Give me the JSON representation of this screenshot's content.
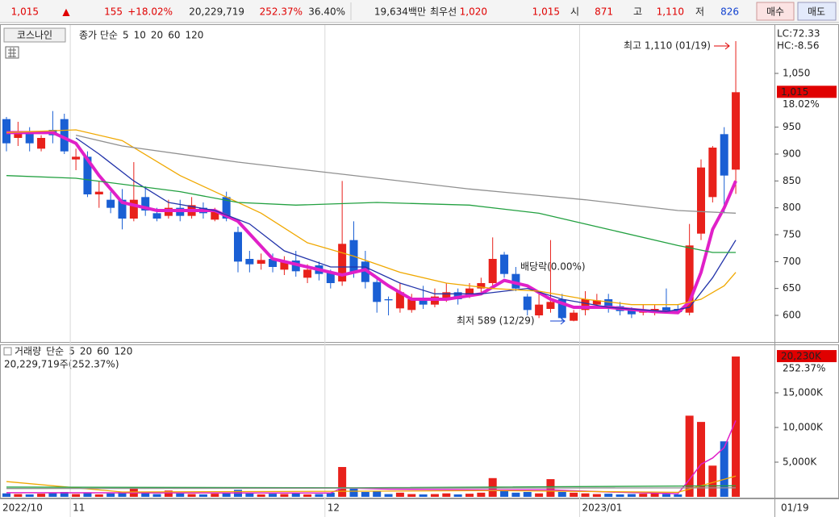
{
  "header": {
    "price": "1,015",
    "arrow": "▲",
    "change": "155",
    "change_pct": "+18.02%",
    "volume": "20,229,719",
    "volume_ratio": "252.37%",
    "turnover": "36.40%",
    "amount": "19,634백만",
    "best_label": "최우선",
    "best_ask": "1,020",
    "best_bid": "1,015",
    "open_label": "시",
    "open": "871",
    "high_label": "고",
    "high": "1,110",
    "low_label": "저",
    "low": "826",
    "buy": "매수",
    "sell": "매도"
  },
  "chart_data": [
    {
      "type": "candlestick",
      "stock": "코스나인",
      "ma_label": "종가 단순",
      "lc": "LC:72.33",
      "hc": "HC:-8.56",
      "categories": [
        "2022/10",
        null,
        null,
        null,
        null,
        null,
        "11",
        null,
        null,
        null,
        null,
        null,
        null,
        null,
        null,
        null,
        null,
        null,
        null,
        null,
        null,
        null,
        null,
        null,
        null,
        null,
        null,
        null,
        "12",
        null,
        null,
        null,
        null,
        null,
        null,
        null,
        null,
        null,
        null,
        null,
        null,
        null,
        null,
        null,
        null,
        null,
        null,
        null,
        null,
        null,
        "2023/01",
        null,
        null,
        null,
        null,
        null,
        null,
        null,
        null,
        null,
        null,
        null,
        null,
        "01/19"
      ],
      "open": [
        965,
        930,
        940,
        910,
        945,
        965,
        890,
        895,
        825,
        815,
        815,
        780,
        820,
        790,
        785,
        800,
        785,
        800,
        778,
        820,
        755,
        705,
        696,
        705,
        685,
        702,
        670,
        693,
        680,
        663,
        740,
        700,
        662,
        630,
        613,
        610,
        632,
        620,
        630,
        643,
        638,
        650,
        660,
        713,
        677,
        635,
        600,
        612,
        630,
        590,
        610,
        620,
        630,
        617,
        610,
        605,
        607,
        615,
        612,
        605,
        752,
        820,
        937,
        871
      ],
      "high": [
        969,
        960,
        950,
        935,
        980,
        975,
        910,
        905,
        850,
        830,
        835,
        885,
        840,
        800,
        815,
        815,
        820,
        810,
        800,
        830,
        765,
        720,
        715,
        715,
        710,
        720,
        695,
        700,
        685,
        850,
        775,
        720,
        670,
        635,
        660,
        640,
        655,
        650,
        660,
        650,
        660,
        670,
        745,
        718,
        690,
        640,
        640,
        740,
        640,
        610,
        645,
        640,
        640,
        625,
        615,
        620,
        620,
        650,
        620,
        770,
        890,
        915,
        950,
        1110
      ],
      "low": [
        905,
        915,
        905,
        905,
        920,
        900,
        870,
        820,
        800,
        790,
        760,
        775,
        785,
        775,
        780,
        775,
        780,
        780,
        775,
        775,
        680,
        680,
        685,
        680,
        675,
        672,
        660,
        665,
        650,
        655,
        670,
        650,
        605,
        600,
        605,
        605,
        612,
        615,
        625,
        620,
        632,
        640,
        650,
        670,
        645,
        600,
        595,
        605,
        590,
        589,
        600,
        612,
        605,
        600,
        595,
        600,
        600,
        605,
        603,
        600,
        740,
        810,
        790,
        826
      ],
      "close": [
        920,
        940,
        920,
        930,
        935,
        905,
        895,
        825,
        830,
        800,
        780,
        815,
        795,
        780,
        800,
        785,
        805,
        790,
        793,
        780,
        700,
        695,
        703,
        690,
        700,
        682,
        685,
        677,
        660,
        733,
        680,
        662,
        625,
        628,
        643,
        630,
        620,
        635,
        643,
        630,
        650,
        660,
        705,
        677,
        650,
        610,
        620,
        625,
        595,
        605,
        630,
        628,
        612,
        608,
        602,
        610,
        612,
        608,
        606,
        730,
        875,
        912,
        860,
        1015
      ],
      "up_color": "#e8211b",
      "down_color": "#1a5fd4",
      "ylim": [
        553.5,
        1137
      ],
      "yticks": [
        600,
        650,
        700,
        750,
        800,
        850,
        900,
        950,
        {
          "value": 1050,
          "label": "1,050"
        }
      ],
      "last": {
        "value": 1015,
        "label": "1,015",
        "change": "18.02%"
      },
      "annotations": {
        "high": "최고 1,110 (01/19)",
        "low": "최저 589 (12/29)",
        "dividend": "배당락(0.00%)"
      },
      "ma": [
        {
          "name": "5",
          "color": "#e020c8",
          "x": [
            0,
            4,
            6,
            8,
            10,
            13,
            18,
            20,
            23,
            27,
            29,
            31,
            33,
            35,
            38,
            41,
            43,
            45,
            47,
            49,
            52,
            56,
            58,
            59,
            60,
            61,
            62,
            63
          ],
          "values": [
            940,
            940,
            920,
            860,
            810,
            795,
            795,
            775,
            705,
            685,
            675,
            685,
            655,
            630,
            630,
            640,
            665,
            655,
            630,
            615,
            615,
            607,
            605,
            625,
            680,
            760,
            800,
            850
          ]
        },
        {
          "name": "10",
          "color": "#2233aa",
          "x": [
            6,
            8,
            11,
            14,
            18,
            21,
            24,
            28,
            31,
            34,
            37,
            41,
            45,
            48,
            52,
            57,
            59,
            61,
            63
          ],
          "values": [
            930,
            900,
            850,
            810,
            795,
            770,
            720,
            690,
            690,
            660,
            640,
            640,
            650,
            630,
            615,
            607,
            615,
            670,
            740
          ]
        },
        {
          "name": "20",
          "color": "#f0a800",
          "x": [
            0,
            6,
            10,
            15,
            19,
            22,
            26,
            30,
            34,
            38,
            42,
            46,
            50,
            54,
            58,
            60,
            62,
            63
          ],
          "values": [
            940,
            945,
            925,
            860,
            820,
            790,
            735,
            710,
            680,
            660,
            650,
            645,
            630,
            620,
            620,
            630,
            655,
            680
          ]
        },
        {
          "name": "60",
          "color": "#22a040",
          "x": [
            0,
            6,
            15,
            20,
            25,
            32,
            40,
            46,
            52,
            58,
            61,
            63
          ],
          "values": [
            860,
            855,
            830,
            810,
            805,
            810,
            805,
            790,
            760,
            730,
            717,
            717
          ]
        },
        {
          "name": "120",
          "color": "#909090",
          "x": [
            6,
            10,
            20,
            30,
            40,
            50,
            58,
            63
          ],
          "values": [
            935,
            915,
            885,
            860,
            835,
            815,
            795,
            790
          ]
        }
      ]
    },
    {
      "type": "bar",
      "volume_label": "거래량",
      "ma_label": "단순",
      "info": "20,229,719주(252.37%)",
      "values": [
        500,
        400,
        350,
        450,
        600,
        700,
        400,
        650,
        350,
        500,
        700,
        1400,
        600,
        400,
        900,
        500,
        400,
        350,
        450,
        600,
        1000,
        500,
        350,
        450,
        400,
        500,
        350,
        400,
        600,
        4300,
        1200,
        700,
        800,
        400,
        600,
        400,
        350,
        400,
        500,
        350,
        450,
        600,
        2700,
        900,
        600,
        700,
        500,
        2550,
        700,
        600,
        500,
        400,
        450,
        350,
        400,
        450,
        500,
        400,
        350,
        11700,
        10800,
        4500,
        8000,
        20229.719
      ],
      "ylim": [
        0,
        21628
      ],
      "yticks": [
        {
          "value": 5000,
          "label": "5,000K"
        },
        {
          "value": 10000,
          "label": "10,000K"
        },
        {
          "value": 15000,
          "label": "15,000K"
        }
      ],
      "last": {
        "value": 20230,
        "label": "20,230K",
        "change": "252.37%"
      },
      "ma": [
        {
          "name": "5",
          "color": "#e020c8",
          "x": [
            0,
            28,
            29,
            33,
            42,
            47,
            52,
            58,
            59,
            60,
            61,
            62,
            63
          ],
          "values": [
            600,
            550,
            1300,
            1100,
            1000,
            1000,
            700,
            450,
            2500,
            4700,
            5600,
            7100,
            11000
          ]
        },
        {
          "name": "20",
          "color": "#f0a800",
          "x": [
            0,
            10,
            29,
            42,
            58,
            60,
            63
          ],
          "values": [
            2200,
            700,
            800,
            900,
            650,
            1600,
            3000
          ]
        },
        {
          "name": "60",
          "color": "#22a040",
          "x": [
            0,
            30,
            63
          ],
          "values": [
            1400,
            1300,
            1600
          ]
        },
        {
          "name": "120",
          "color": "#909090",
          "x": [
            0,
            63
          ],
          "values": [
            1200,
            1300
          ]
        }
      ]
    }
  ]
}
